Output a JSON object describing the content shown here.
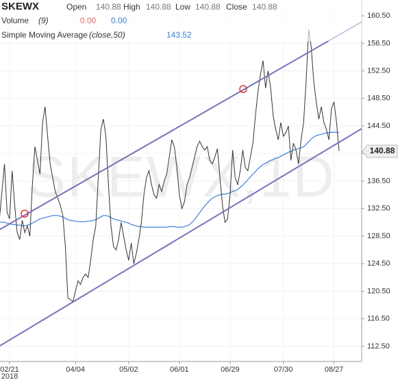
{
  "chart_data": {
    "type": "line",
    "header": {
      "symbol": "SKEWX",
      "open_label": "Open",
      "open": "140.88",
      "high_label": "High",
      "high": "140.88",
      "low_label": "Low",
      "low": "140.88",
      "close_label": "Close",
      "close": "140.88",
      "volume_label": "Volume",
      "volume_param": "(9)",
      "volume_value_1": "0.00",
      "volume_value_2": "0.00",
      "sma_label": "Simple Moving Average",
      "sma_param": "(close,50)",
      "sma_value": "143.52"
    },
    "watermark": "SKEWX,1D",
    "last_price_label": "140.88",
    "year_label": "2018",
    "categories": [
      null,
      null,
      null,
      null,
      "02/21",
      null,
      null,
      null,
      null,
      null,
      null,
      null,
      null,
      null,
      null,
      null,
      null,
      null,
      null,
      null,
      null,
      null,
      null,
      null,
      null,
      null,
      null,
      null,
      null,
      null,
      "04/04",
      null,
      null,
      null,
      null,
      null,
      null,
      null,
      null,
      null,
      null,
      null,
      null,
      null,
      null,
      null,
      null,
      null,
      null,
      null,
      null,
      "05/02",
      null,
      null,
      null,
      null,
      null,
      null,
      null,
      null,
      null,
      null,
      null,
      null,
      null,
      null,
      null,
      null,
      null,
      null,
      null,
      "06/01",
      null,
      null,
      null,
      null,
      null,
      null,
      null,
      null,
      null,
      null,
      null,
      null,
      null,
      null,
      null,
      null,
      null,
      null,
      null,
      "06/29",
      null,
      null,
      null,
      null,
      null,
      null,
      null,
      null,
      null,
      null,
      null,
      null,
      null,
      null,
      null,
      null,
      null,
      null,
      null,
      null,
      "07/30",
      null,
      null,
      null,
      null,
      null,
      null,
      null,
      null,
      null,
      null,
      null,
      null,
      null,
      null,
      null,
      null,
      null,
      null,
      null,
      "08/27",
      null,
      null
    ],
    "series": [
      {
        "name": "SKEWX",
        "color": "#333333",
        "values": [
          131,
          135,
          139,
          132,
          131,
          138,
          133,
          129,
          128,
          130.8,
          129,
          130,
          128.5,
          136,
          141.5,
          139.5,
          137.5,
          145,
          147.3,
          143,
          139,
          137,
          135,
          134,
          133,
          131.5,
          127,
          119.5,
          119.3,
          119,
          120.5,
          122,
          121.5,
          122.5,
          123,
          122.5,
          125,
          128,
          130,
          137,
          144,
          145.5,
          143,
          136,
          130,
          127,
          126.5,
          128,
          130.5,
          128.5,
          126.5,
          125,
          127.5,
          124.5,
          126,
          128,
          130.5,
          134.5,
          137,
          138,
          136,
          134.5,
          134,
          136,
          135,
          136.5,
          137.5,
          140,
          142.5,
          141.5,
          138.5,
          134.5,
          132.5,
          133.5,
          136,
          137,
          138.5,
          140,
          141.5,
          142.3,
          141.5,
          141,
          141.5,
          139.5,
          139,
          140,
          141.2,
          137,
          133,
          130.5,
          131,
          134.5,
          141,
          137,
          136,
          138,
          141,
          138.5,
          138,
          140,
          142,
          146,
          149.5,
          152,
          154,
          150,
          152.5,
          150,
          146,
          144,
          142.5,
          145,
          143,
          143.5,
          144.5,
          139.5,
          142,
          141,
          139,
          142.5,
          145,
          151,
          158.5,
          156,
          151,
          148,
          145.5,
          147.3,
          145,
          144,
          142.5,
          147,
          148,
          145,
          140.88
        ]
      },
      {
        "name": "Simple Moving Average",
        "color": "#3b7dd8",
        "values": [
          130.6,
          130.5,
          130.5,
          130.4,
          130.3,
          130.2,
          130.2,
          130.1,
          130.1,
          130.0,
          130.0,
          130.1,
          130.2,
          130.4,
          130.6,
          130.8,
          131.0,
          131.1,
          131.2,
          131.3,
          131.4,
          131.5,
          131.5,
          131.5,
          131.4,
          131.3,
          131.1,
          130.9,
          130.8,
          130.7,
          130.7,
          130.6,
          130.6,
          130.6,
          130.6,
          130.7,
          130.7,
          130.8,
          130.9,
          131.1,
          131.3,
          131.5,
          131.5,
          131.4,
          131.2,
          131.0,
          130.9,
          130.8,
          130.7,
          130.6,
          130.5,
          130.4,
          130.2,
          130.1,
          130.0,
          129.9,
          129.9,
          129.8,
          129.8,
          129.8,
          129.8,
          129.8,
          129.8,
          129.8,
          129.8,
          129.8,
          129.8,
          129.9,
          129.9,
          129.9,
          129.8,
          129.8,
          129.8,
          129.9,
          130.0,
          130.2,
          130.5,
          130.9,
          131.4,
          131.9,
          132.4,
          132.9,
          133.3,
          133.7,
          134.0,
          134.2,
          134.4,
          134.5,
          134.6,
          134.6,
          134.7,
          134.8,
          135.0,
          135.1,
          135.3,
          135.6,
          135.9,
          136.3,
          136.7,
          137.1,
          137.5,
          137.9,
          138.3,
          138.6,
          138.9,
          139.1,
          139.3,
          139.5,
          139.6,
          139.8,
          139.9,
          140.1,
          140.3,
          140.5,
          140.7,
          140.8,
          141.0,
          141.1,
          141.2,
          141.3,
          141.5,
          141.8,
          142.2,
          142.6,
          142.9,
          143.1,
          143.2,
          143.3,
          143.4,
          143.5,
          143.5,
          143.6,
          143.6,
          143.6,
          143.52
        ]
      }
    ],
    "ylim": [
      110.3,
      162.8
    ],
    "yticks": [
      {
        "value": 160.5,
        "label": "160.50"
      },
      {
        "value": 156.5,
        "label": "156.50"
      },
      {
        "value": 152.5,
        "label": "152.50"
      },
      {
        "value": 148.5,
        "label": "148.50"
      },
      {
        "value": 144.5,
        "label": "144.50"
      },
      {
        "value": 140.5,
        "label": "140.50"
      },
      {
        "value": 136.5,
        "label": "136.50"
      },
      {
        "value": 132.5,
        "label": "132.50"
      },
      {
        "value": 128.5,
        "label": "128.50"
      },
      {
        "value": 124.5,
        "label": "124.50"
      },
      {
        "value": 120.5,
        "label": "120.50"
      },
      {
        "value": 116.5,
        "label": "116.50"
      },
      {
        "value": 112.5,
        "label": "112.50"
      }
    ],
    "grid": true
  }
}
